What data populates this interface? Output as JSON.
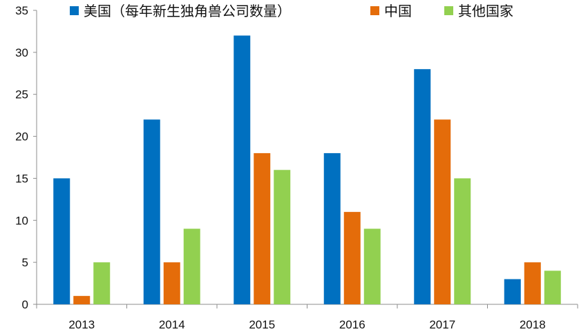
{
  "chart_data": {
    "type": "bar",
    "title": "",
    "xlabel": "",
    "ylabel": "",
    "ylim": [
      0,
      35
    ],
    "yticks": [
      0,
      5,
      10,
      15,
      20,
      25,
      30,
      35
    ],
    "categories": [
      "2013",
      "2014",
      "2015",
      "2016",
      "2017",
      "2018"
    ],
    "series": [
      {
        "name": "美国（每年新生独角兽公司数量）",
        "color": "#0070C0",
        "values": [
          15,
          22,
          32,
          18,
          28,
          3
        ]
      },
      {
        "name": "中国",
        "color": "#E46C0A",
        "values": [
          1,
          5,
          18,
          11,
          22,
          5
        ]
      },
      {
        "name": "其他国家",
        "color": "#92D050",
        "values": [
          5,
          9,
          16,
          9,
          15,
          4
        ]
      }
    ],
    "legend_position": "top",
    "grid": false
  }
}
